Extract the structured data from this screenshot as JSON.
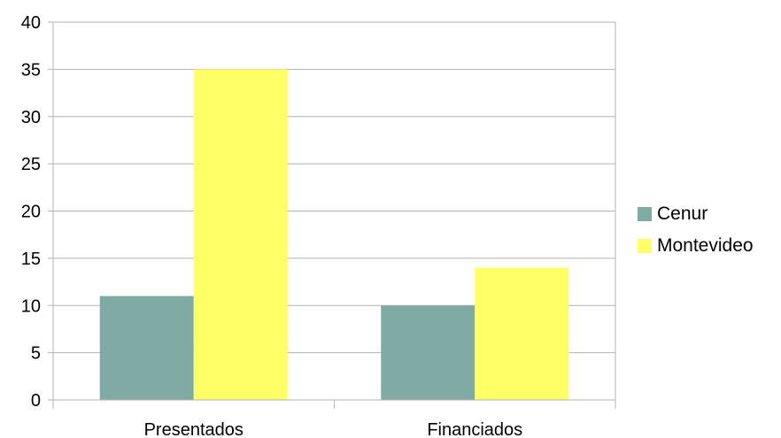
{
  "chart_data": {
    "type": "bar",
    "categories": [
      "Presentados",
      "Financiados"
    ],
    "series": [
      {
        "name": "Cenur",
        "values": [
          11,
          10
        ],
        "color": "#80aba5"
      },
      {
        "name": "Montevideo",
        "values": [
          35,
          14
        ],
        "color": "#ffff66"
      }
    ],
    "y_ticks": [
      "0",
      "5",
      "10",
      "15",
      "20",
      "25",
      "30",
      "35",
      "40"
    ],
    "ylim": [
      0,
      40
    ],
    "grid": true,
    "legend_position": "right",
    "title": "",
    "xlabel": "",
    "ylabel": ""
  }
}
